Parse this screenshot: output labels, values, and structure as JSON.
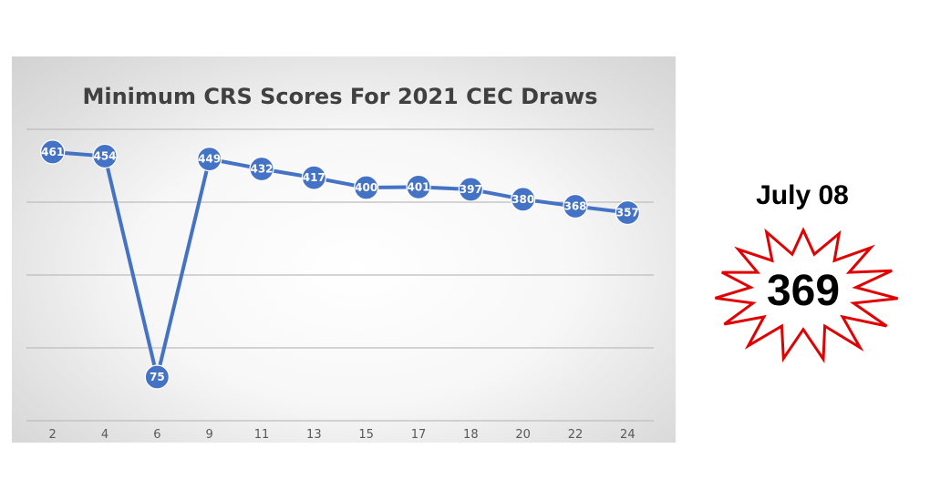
{
  "chart_data": {
    "type": "line",
    "title": "Minimum CRS Scores For 2021 CEC Draws",
    "categories": [
      "2",
      "4",
      "6",
      "9",
      "11",
      "13",
      "15",
      "17",
      "18",
      "20",
      "22",
      "24"
    ],
    "series": [
      {
        "values": [
          461,
          454,
          75,
          449,
          432,
          417,
          400,
          401,
          397,
          380,
          368,
          357
        ]
      }
    ],
    "data_labels": true,
    "ylim": [
      0,
      500
    ],
    "grid": true,
    "show_y_axis_labels": false,
    "colors": {
      "series": "#4472c4"
    }
  },
  "callout": {
    "date": "July 08",
    "score": "369",
    "burst_color": "#e00000"
  }
}
